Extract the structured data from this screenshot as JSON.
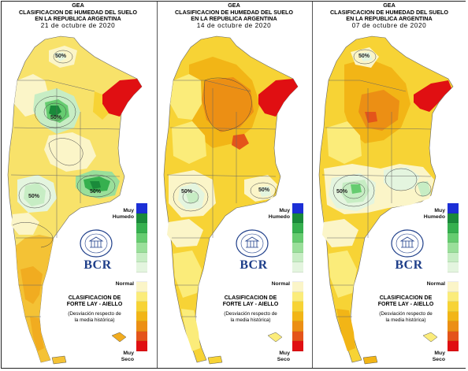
{
  "panels": [
    {
      "gea": "GEA",
      "title_line1": "CLASIFICACION DE HUMEDAD DEL SUELO",
      "title_line2": "EN LA REPUBLICA ARGENTINA",
      "date": "21 de octubre de 2020",
      "percent_labels": [
        "50%",
        "50%",
        "50%",
        "50%"
      ]
    },
    {
      "gea": "GEA",
      "title_line1": "CLASIFICACION DE HUMEDAD DEL SUELO",
      "title_line2": "EN LA REPUBLICA ARGENTINA",
      "date": "14 de octubre de 2020",
      "percent_labels": [
        "50%",
        "50%"
      ]
    },
    {
      "gea": "GEA",
      "title_line1": "CLASIFICACION DE HUMEDAD DEL SUELO",
      "title_line2": "EN LA REPUBLICA ARGENTINA",
      "date": "07 de octubre de 2020",
      "percent_labels": [
        "50%",
        "50%"
      ]
    }
  ],
  "legend": {
    "top_label_line1": "Muy",
    "top_label_line2": "Humedo",
    "middle_label": "Normal",
    "bottom_label_line1": "Muy",
    "bottom_label_line2": "Seco",
    "classification_line1": "CLASIFICACION DE",
    "classification_line2": "FORTE LAY - AIELLO",
    "note_line1": "(Desviación respecto de",
    "note_line2": "la media histórica)",
    "colors": [
      "#1c2fd6",
      "#1a8a3a",
      "#36b04f",
      "#66cc70",
      "#9adf9a",
      "#c7edc4",
      "#e4f5df",
      "#ffffff",
      "#fbf5c8",
      "#fbec7a",
      "#f7d335",
      "#f2b516",
      "#ec8f14",
      "#e4541a",
      "#e00f12"
    ]
  },
  "logo": {
    "text": "BCR",
    "seal_text": "BOLSA DE COMERCIO DE ROSARIO"
  },
  "colors": {
    "frame": "#222222",
    "brand": "#1f3f8a"
  }
}
